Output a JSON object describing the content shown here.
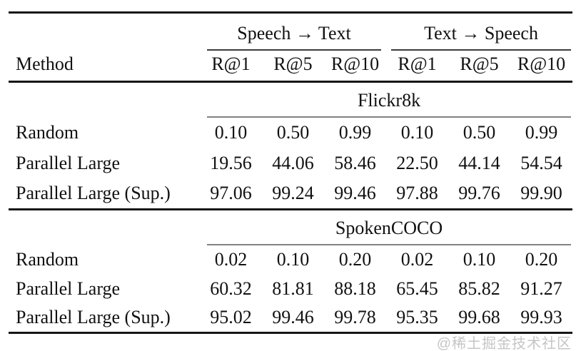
{
  "watermark": "@稀土掘金技术社区",
  "table": {
    "method_header": "Method",
    "groups": [
      {
        "label": "Speech → Text"
      },
      {
        "label": "Text → Speech"
      }
    ],
    "subheaders": [
      "R@1",
      "R@5",
      "R@10",
      "R@1",
      "R@5",
      "R@10"
    ],
    "sections": [
      {
        "title": "Flickr8k",
        "rows": [
          {
            "method": "Random",
            "values": [
              "0.10",
              "0.50",
              "0.99",
              "0.10",
              "0.50",
              "0.99"
            ]
          },
          {
            "method": "Parallel Large",
            "values": [
              "19.56",
              "44.06",
              "58.46",
              "22.50",
              "44.14",
              "54.54"
            ]
          },
          {
            "method": "Parallel Large (Sup.)",
            "values": [
              "97.06",
              "99.24",
              "99.46",
              "97.88",
              "99.76",
              "99.90"
            ]
          }
        ]
      },
      {
        "title": "SpokenCOCO",
        "rows": [
          {
            "method": "Random",
            "values": [
              "0.02",
              "0.10",
              "0.20",
              "0.02",
              "0.10",
              "0.20"
            ]
          },
          {
            "method": "Parallel Large",
            "values": [
              "60.32",
              "81.81",
              "88.18",
              "65.45",
              "85.82",
              "91.27"
            ]
          },
          {
            "method": "Parallel Large (Sup.)",
            "values": [
              "95.02",
              "99.46",
              "99.78",
              "95.35",
              "99.68",
              "99.93"
            ]
          }
        ]
      }
    ]
  },
  "colors": {
    "thick_rule": "#161616",
    "group_rule": "#3a3a3a",
    "section_rule": "#828282",
    "text": "#111111",
    "watermark": "#969696",
    "background": "#ffffff"
  }
}
